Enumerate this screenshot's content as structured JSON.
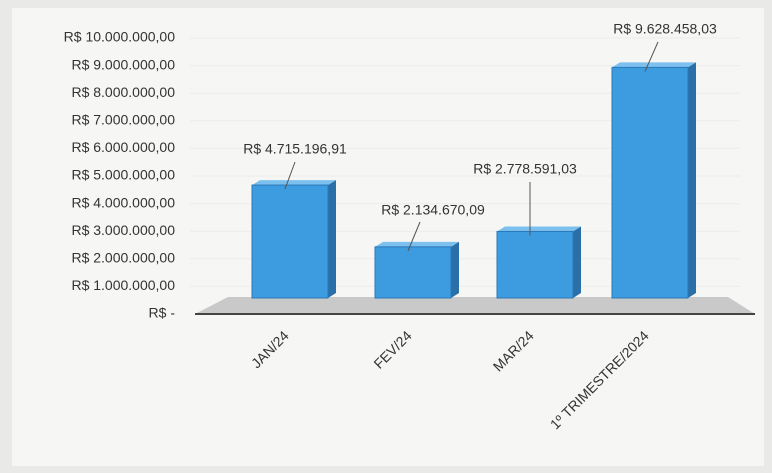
{
  "chart_data": {
    "type": "bar3d",
    "categories": [
      "JAN/24",
      "FEV/24",
      "MAR/24",
      "1º TRIMESTRE/2024"
    ],
    "values": [
      4715196.91,
      2134670.09,
      2778591.03,
      9628458.03
    ],
    "value_labels": [
      "R$ 4.715.196,91",
      "R$ 2.134.670,09",
      "R$ 2.778.591,03",
      "R$ 9.628.458,03"
    ],
    "color": "#3d9be0",
    "ylim": [
      0,
      10000000
    ],
    "yticks": [
      {
        "value": 0,
        "label": "R$ -"
      },
      {
        "value": 1000000,
        "label": "R$ 1.000.000,00"
      },
      {
        "value": 2000000,
        "label": "R$ 2.000.000,00"
      },
      {
        "value": 3000000,
        "label": "R$ 3.000.000,00"
      },
      {
        "value": 4000000,
        "label": "R$ 4.000.000,00"
      },
      {
        "value": 5000000,
        "label": "R$ 5.000.000,00"
      },
      {
        "value": 6000000,
        "label": "R$ 6.000.000,00"
      },
      {
        "value": 7000000,
        "label": "R$ 7.000.000,00"
      },
      {
        "value": 8000000,
        "label": "R$ 8.000.000,00"
      },
      {
        "value": 9000000,
        "label": "R$ 9.000.000,00"
      },
      {
        "value": 10000000,
        "label": "R$ 10.000.000,00"
      }
    ],
    "grid": true
  }
}
